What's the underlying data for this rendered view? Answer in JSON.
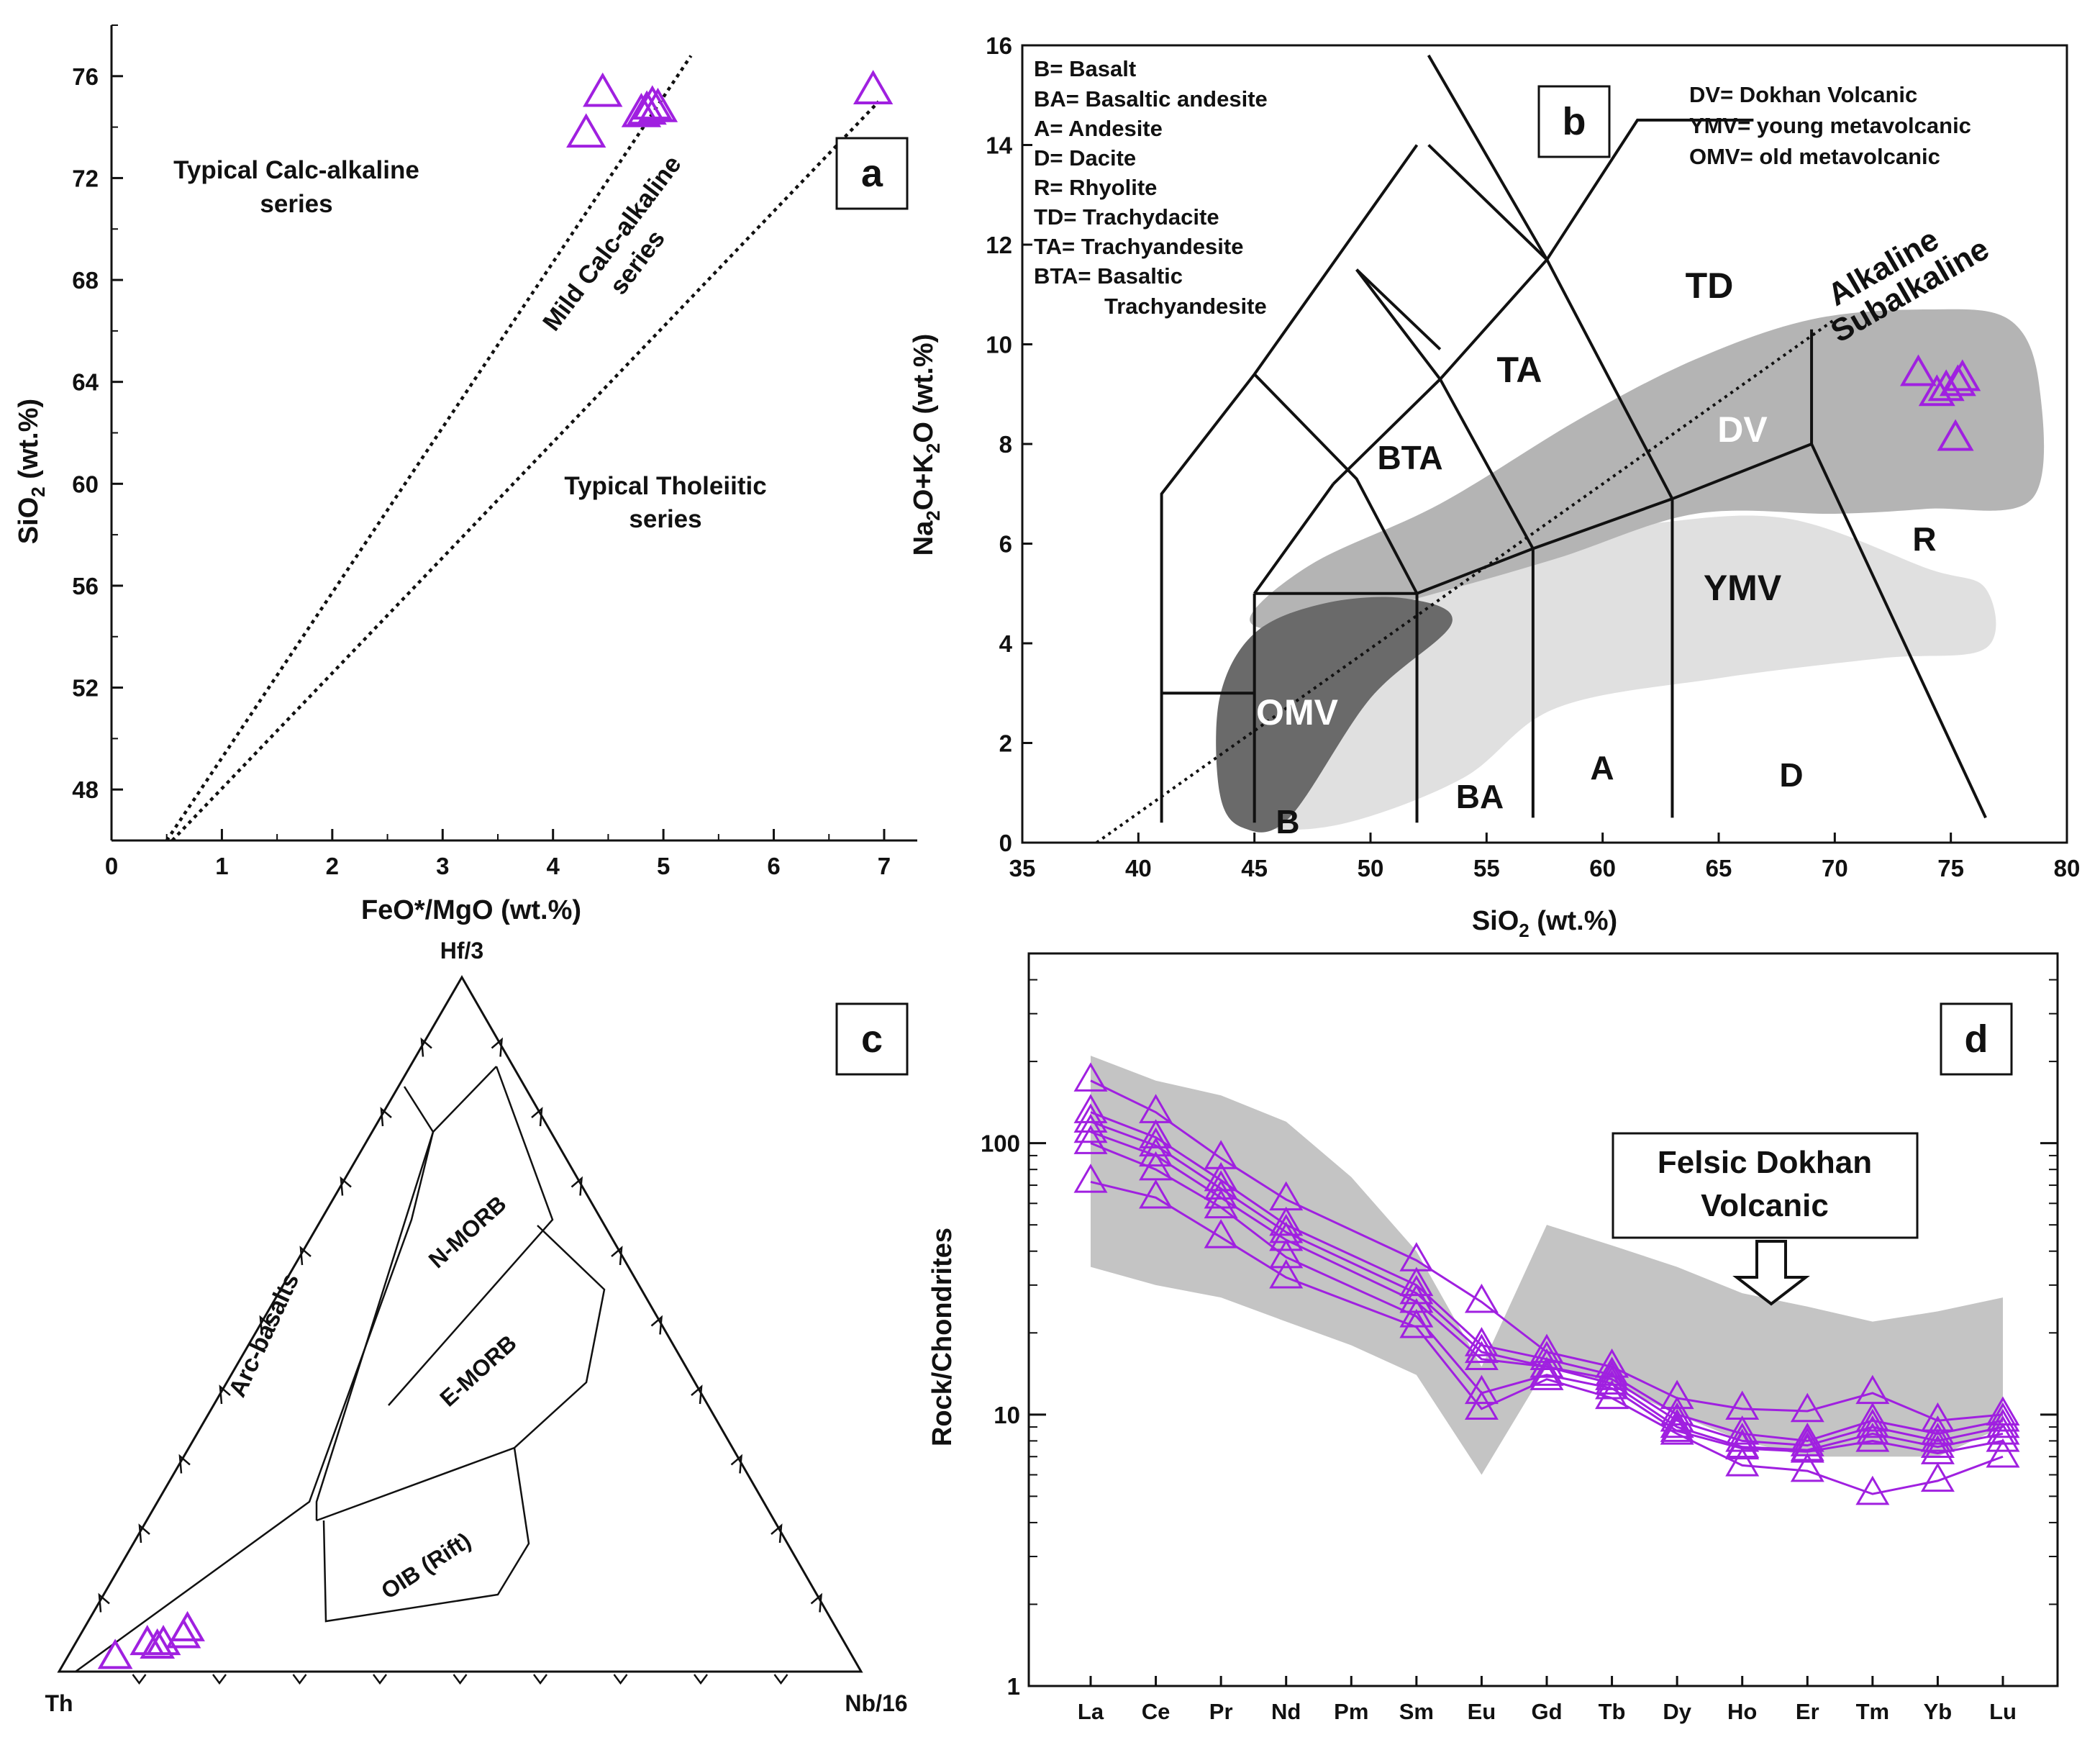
{
  "colors": {
    "marker": "#a020e0",
    "field_dark": "#6a6a6a",
    "field_mid": "#b4b4b4",
    "field_light": "#e0e0e0",
    "shade_d": "#c4c4c4",
    "ink": "#111111"
  },
  "chart_data": [
    {
      "panel": "a",
      "type": "scatter",
      "xlabel": "FeO*/MgO (wt.%)",
      "ylabel": "SiO2 (wt.%)",
      "ylabel_main": "SiO",
      "ylabel_sub": "2",
      "ylabel_tail": " (wt.%)",
      "xlim": [
        0,
        7.3
      ],
      "ylim": [
        46,
        78
      ],
      "xticks": [
        0,
        1,
        2,
        3,
        4,
        5,
        6,
        7
      ],
      "yticks": [
        48,
        52,
        56,
        60,
        64,
        68,
        72,
        76
      ],
      "lines": [
        {
          "name": "calc-alkaline boundary",
          "x": [
            0.5,
            5.25
          ],
          "y": [
            46,
            76.8
          ]
        },
        {
          "name": "tholeiitic boundary",
          "x": [
            0.55,
            6.95
          ],
          "y": [
            46,
            75.0
          ]
        }
      ],
      "series": [
        {
          "name": "Dokhan Volcanic",
          "marker": "triangle-open",
          "x": [
            4.45,
            4.3,
            4.8,
            4.85,
            4.9,
            4.95,
            6.9
          ],
          "y": [
            75.3,
            73.7,
            74.5,
            74.6,
            74.8,
            74.7,
            75.4
          ]
        }
      ],
      "annotations": {
        "calc1": "Typical Calc-alkaline",
        "calc2": "series",
        "mild1": "Mild Calc-alkaline",
        "mild2": "series",
        "thol1": "Typical Tholeiitic",
        "thol2": "series"
      },
      "panel_label": "a"
    },
    {
      "panel": "b",
      "type": "scatter",
      "xlabel": "SiO2 (wt.%)",
      "xlabel_main": "SiO",
      "xlabel_sub": "2",
      "xlabel_tail": " (wt.%)",
      "ylabel": "Na2O+K2O (wt.%)",
      "ylabel_p1": "Na",
      "ylabel_s1": "2",
      "ylabel_p2": "O+K",
      "ylabel_s2": "2",
      "ylabel_p3": "O (wt.%)",
      "xlim": [
        35,
        80
      ],
      "ylim": [
        0,
        16
      ],
      "xticks": [
        35,
        40,
        45,
        50,
        55,
        60,
        65,
        70,
        75,
        80
      ],
      "yticks": [
        0,
        2,
        4,
        6,
        8,
        10,
        12,
        14,
        16
      ],
      "fields": [
        {
          "name": "YMV",
          "color": "light",
          "points": [
            [
              44.5,
              0.8
            ],
            [
              46,
              3.5
            ],
            [
              49,
              4.8
            ],
            [
              55,
              5.9
            ],
            [
              62,
              6.4
            ],
            [
              68,
              6.5
            ],
            [
              74,
              5.5
            ],
            [
              76.5,
              5.1
            ],
            [
              76.5,
              3.9
            ],
            [
              72,
              3.7
            ],
            [
              65,
              3.3
            ],
            [
              58,
              2.7
            ],
            [
              54,
              1.3
            ],
            [
              49,
              0.4
            ],
            [
              45.5,
              0.3
            ]
          ]
        },
        {
          "name": "DV",
          "color": "mid",
          "points": [
            [
              44.8,
              4.5
            ],
            [
              47.5,
              5.6
            ],
            [
              53,
              6.8
            ],
            [
              59,
              8.5
            ],
            [
              64,
              9.7
            ],
            [
              69,
              10.5
            ],
            [
              74,
              10.7
            ],
            [
              77.5,
              10.5
            ],
            [
              78.8,
              9.2
            ],
            [
              78.5,
              6.9
            ],
            [
              74,
              6.7
            ],
            [
              70,
              6.6
            ],
            [
              64,
              6.6
            ],
            [
              58,
              5.7
            ],
            [
              52,
              4.9
            ],
            [
              47,
              4.3
            ]
          ]
        },
        {
          "name": "OMV",
          "color": "dark",
          "points": [
            [
              43.5,
              2.9
            ],
            [
              45,
              4.2
            ],
            [
              48,
              4.8
            ],
            [
              51.5,
              4.9
            ],
            [
              53.5,
              4.4
            ],
            [
              50,
              2.9
            ],
            [
              46.5,
              0.5
            ],
            [
              44.5,
              0.3
            ],
            [
              43.5,
              1.0
            ]
          ]
        }
      ],
      "classification_lines": [
        {
          "x": [
            41,
            41,
            45,
            52
          ],
          "y": [
            0.4,
            7,
            9.4,
            14
          ]
        },
        {
          "x": [
            41,
            45
          ],
          "y": [
            3,
            3
          ]
        },
        {
          "x": [
            45,
            45
          ],
          "y": [
            0.4,
            5
          ]
        },
        {
          "x": [
            45,
            52
          ],
          "y": [
            5,
            5
          ]
        },
        {
          "x": [
            45,
            48.4
          ],
          "y": [
            5,
            7.2
          ]
        },
        {
          "x": [
            48.4,
            53,
            57.6
          ],
          "y": [
            7.2,
            9.3,
            11.7
          ]
        },
        {
          "x": [
            45,
            49.4,
            52
          ],
          "y": [
            9.4,
            7.3,
            5
          ]
        },
        {
          "x": [
            52,
            52
          ],
          "y": [
            0.4,
            5
          ]
        },
        {
          "x": [
            52,
            57,
            63,
            69
          ],
          "y": [
            5,
            5.9,
            6.9,
            8
          ]
        },
        {
          "x": [
            57,
            57
          ],
          "y": [
            0.5,
            5.9
          ]
        },
        {
          "x": [
            63,
            63
          ],
          "y": [
            0.5,
            6.9
          ]
        },
        {
          "x": [
            69,
            69
          ],
          "y": [
            8,
            10.3
          ]
        },
        {
          "x": [
            69,
            76.5
          ],
          "y": [
            8,
            0.5
          ]
        },
        {
          "x": [
            57,
            53,
            49.4
          ],
          "y": [
            5.9,
            9.3,
            11.5
          ]
        },
        {
          "x": [
            63,
            57.6,
            52.5
          ],
          "y": [
            6.9,
            11.7,
            14
          ]
        },
        {
          "x": [
            57.6,
            52.5
          ],
          "y": [
            11.7,
            15.8
          ]
        },
        {
          "x": [
            57.6,
            61.5,
            66.5
          ],
          "y": [
            11.7,
            14.5,
            14.5
          ]
        },
        {
          "x": [
            49.4,
            53
          ],
          "y": [
            11.5,
            9.9
          ]
        }
      ],
      "dotted_line": {
        "x": [
          38.2,
          70
        ],
        "y": [
          0,
          10.5
        ]
      },
      "series": [
        {
          "name": "Dokhan Volcanic",
          "marker": "triangle-open",
          "x": [
            73.6,
            74.4,
            74.8,
            75.3,
            75.5,
            75.2
          ],
          "y": [
            9.4,
            9.0,
            9.1,
            9.2,
            9.3,
            8.1
          ]
        }
      ],
      "field_labels": {
        "TD": "TD",
        "TA": "TA",
        "BTA": "BTA",
        "A": "A",
        "D": "D",
        "R": "R",
        "BA": "BA",
        "B": "B",
        "OMV": "OMV",
        "DV": "DV",
        "YMV": "YMV",
        "alkaline": "Alkaline",
        "subalkaline": "Subalkaline"
      },
      "legend_left": [
        "B= Basalt",
        "BA= Basaltic andesite",
        "A= Andesite",
        "D= Dacite",
        "R= Rhyolite",
        "TD= Trachydacite",
        "TA= Trachyandesite",
        "BTA= Basaltic",
        "Trachyandesite"
      ],
      "legend_right": [
        "DV= Dokhan Volcanic",
        "YMV= young metavolcanic",
        "OMV= old metavolcanic"
      ],
      "panel_label": "b"
    },
    {
      "panel": "c",
      "type": "ternary",
      "apices": {
        "top": "Hf/3",
        "left": "Th",
        "right": "Nb/16"
      },
      "field_labels": {
        "arc": "Arc-basalts",
        "nmorb": "N-MORB",
        "emorb": "E-MORB",
        "oib": "OIB (Rift)"
      },
      "series": [
        {
          "name": "Dokhan Volcanic",
          "marker": "triangle-open",
          "points_hf_th_nb": [
            [
              0.02,
              0.92,
              0.06
            ],
            [
              0.04,
              0.87,
              0.09
            ],
            [
              0.035,
              0.86,
              0.105
            ],
            [
              0.04,
              0.85,
              0.11
            ],
            [
              0.05,
              0.82,
              0.13
            ],
            [
              0.06,
              0.81,
              0.13
            ]
          ]
        }
      ],
      "panel_label": "c"
    },
    {
      "panel": "d",
      "type": "line",
      "scale": "log",
      "ylabel": "Rock/Chondrites",
      "ylim": [
        1,
        500
      ],
      "yticks": [
        1,
        10,
        100
      ],
      "categories": [
        "La",
        "Ce",
        "Pr",
        "Nd",
        "Pm",
        "Sm",
        "Eu",
        "Gd",
        "Tb",
        "Dy",
        "Ho",
        "Er",
        "Tm",
        "Yb",
        "Lu"
      ],
      "shaded_range": {
        "upper": [
          210,
          170,
          150,
          120,
          75,
          40,
          15,
          50,
          42,
          35,
          28,
          25,
          22,
          24,
          27
        ],
        "lower": [
          35,
          30,
          27,
          22,
          18,
          14,
          6,
          15,
          13,
          10,
          8,
          7,
          7,
          7,
          9
        ]
      },
      "series": [
        {
          "name": "s1",
          "values": [
            170,
            130,
            88,
            62,
            null,
            37,
            26,
            17,
            15,
            11.5,
            10.5,
            10.3,
            12,
            9.5,
            10
          ]
        },
        {
          "name": "s2",
          "values": [
            130,
            105,
            73,
            50,
            null,
            30,
            18,
            16,
            14,
            10,
            8.5,
            8,
            9.5,
            8.5,
            9.5
          ]
        },
        {
          "name": "s3",
          "values": [
            120,
            98,
            68,
            47,
            null,
            28,
            17,
            15,
            13.5,
            9.5,
            8,
            7.7,
            9,
            8,
            9
          ]
        },
        {
          "name": "s4",
          "values": [
            110,
            90,
            63,
            44,
            null,
            26,
            16,
            15,
            13,
            9,
            7.6,
            7.4,
            8.5,
            7.6,
            8.5
          ]
        },
        {
          "name": "s5",
          "values": [
            100,
            80,
            58,
            38,
            null,
            23,
            12,
            14,
            12.5,
            8.7,
            7.5,
            7.3,
            8,
            7.2,
            8
          ]
        },
        {
          "name": "s6",
          "values": [
            72,
            63,
            45,
            32,
            null,
            21,
            10.5,
            13.5,
            11.5,
            8.5,
            6.5,
            6.2,
            5.1,
            5.7,
            7
          ]
        }
      ],
      "annotation": {
        "line1": "Felsic Dokhan",
        "line2": "Volcanic"
      },
      "panel_label": "d"
    }
  ]
}
